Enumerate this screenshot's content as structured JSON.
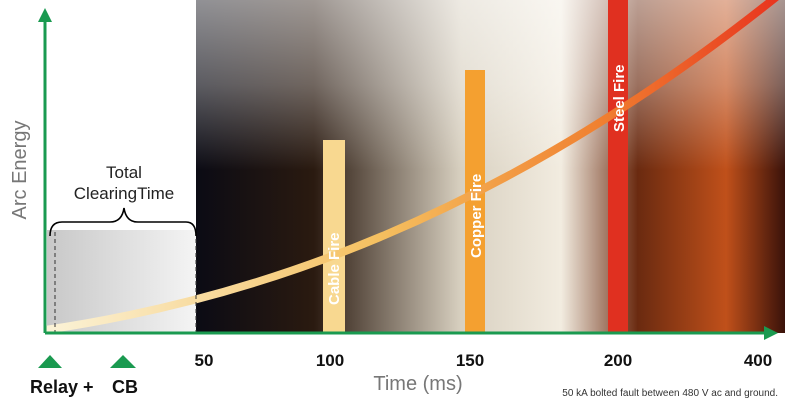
{
  "axis": {
    "y_label": "Arc Energy",
    "x_label": "Time (ms)",
    "x_ticks": [
      "50",
      "100",
      "150",
      "200",
      "400"
    ]
  },
  "clearing_time": {
    "line1": "Total",
    "line2": "ClearingTime"
  },
  "fires": [
    "Cable Fire",
    "Copper Fire",
    "Steel Fire"
  ],
  "devices": [
    "Relay +",
    "CB"
  ],
  "footnote": "50 kA bolted fault between 480 V ac and ground."
}
